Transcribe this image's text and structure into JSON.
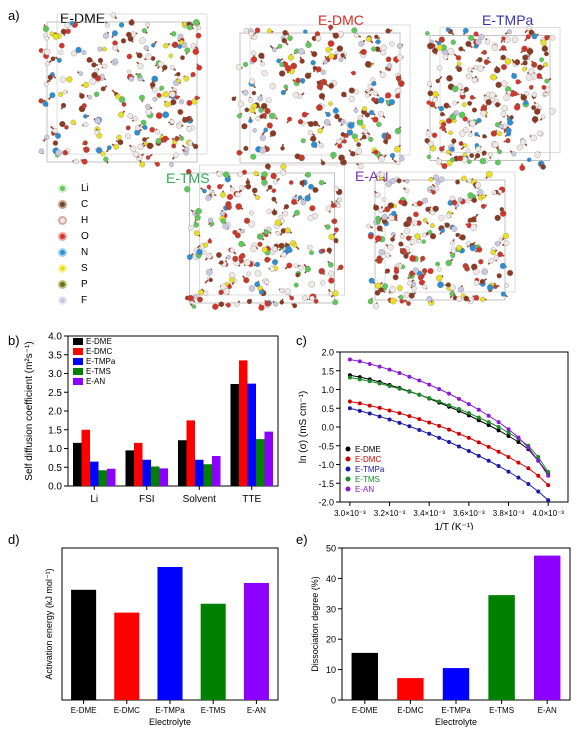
{
  "panel_labels": {
    "a": "a)",
    "b": "b)",
    "c": "c)",
    "d": "d)",
    "e": "e)"
  },
  "structures": [
    {
      "title": "E-DME",
      "color": "#000000"
    },
    {
      "title": "E-DMC",
      "color": "#d42a1e"
    },
    {
      "title": "E-TMPa",
      "color": "#3a33b5"
    },
    {
      "title": "E-TMS",
      "color": "#2eae52"
    },
    {
      "title": "E-AN",
      "color": "#7d2fc0"
    }
  ],
  "atom_legend": [
    {
      "symbol": "Li",
      "color": "#5fc85a"
    },
    {
      "symbol": "C",
      "color": "#6b4a2f"
    },
    {
      "symbol": "H",
      "color": "#e8c8c0"
    },
    {
      "symbol": "O",
      "color": "#d4342a"
    },
    {
      "symbol": "N",
      "color": "#2a8fd4"
    },
    {
      "symbol": "S",
      "color": "#e8e020"
    },
    {
      "symbol": "P",
      "color": "#6b7020"
    },
    {
      "symbol": "F",
      "color": "#c8c8e0"
    }
  ],
  "chart_data": [
    {
      "id": "b",
      "type": "bar",
      "categories": [
        "Li",
        "FSI",
        "Solvent",
        "TTE"
      ],
      "ylabel": "Self diffusion coefficient (m²s⁻¹)",
      "ylim": [
        0,
        4.0
      ],
      "yticks": [
        "0.0",
        "0.5",
        "1.0",
        "1.5",
        "2.0",
        "2.5",
        "3.0",
        "3.5",
        "4.0"
      ],
      "legend_position": "top-left",
      "series": [
        {
          "name": "E-DME",
          "color": "#000000",
          "values": [
            1.15,
            0.95,
            1.22,
            2.72
          ]
        },
        {
          "name": "E-DMC",
          "color": "#ff0000",
          "values": [
            1.5,
            1.15,
            1.75,
            3.35
          ]
        },
        {
          "name": "E-TMPa",
          "color": "#0000ff",
          "values": [
            0.65,
            0.7,
            0.7,
            2.73
          ]
        },
        {
          "name": "E-TMS",
          "color": "#008000",
          "values": [
            0.42,
            0.52,
            0.58,
            1.25
          ]
        },
        {
          "name": "E-AN",
          "color": "#8b00ff",
          "values": [
            0.46,
            0.47,
            0.8,
            1.45
          ]
        }
      ]
    },
    {
      "id": "c",
      "type": "line",
      "xlabel": "1/T (K⁻¹)",
      "ylabel": "ln (σ) (mS cm⁻¹)",
      "xlim": [
        0.00295,
        0.0041
      ],
      "ylim": [
        -2.0,
        2.0
      ],
      "xticks": [
        "3.0×10⁻³",
        "3.2×10⁻³",
        "3.4×10⁻³",
        "3.6×10⁻³",
        "3.8×10⁻³",
        "4.0×10⁻³"
      ],
      "xtick_values": [
        0.003,
        0.0032,
        0.0034,
        0.0036,
        0.0038,
        0.004
      ],
      "yticks": [
        "-2.0",
        "-1.5",
        "-1.0",
        "-0.5",
        "0.0",
        "0.5",
        "1.0",
        "1.5",
        "2.0"
      ],
      "legend_position": "bottom-left",
      "x": [
        0.003,
        0.00305,
        0.0031,
        0.00315,
        0.0032,
        0.00325,
        0.0033,
        0.00335,
        0.0034,
        0.00345,
        0.0035,
        0.00355,
        0.0036,
        0.00365,
        0.0037,
        0.00375,
        0.0038,
        0.00385,
        0.0039,
        0.00395,
        0.004
      ],
      "series": [
        {
          "name": "E-DME",
          "color": "#000000",
          "values": [
            1.38,
            1.33,
            1.27,
            1.2,
            1.12,
            1.04,
            0.95,
            0.86,
            0.76,
            0.65,
            0.54,
            0.43,
            0.31,
            0.18,
            0.05,
            -0.09,
            -0.24,
            -0.4,
            -0.59,
            -0.9,
            -1.25
          ]
        },
        {
          "name": "E-DMC",
          "color": "#d40000",
          "values": [
            0.68,
            0.63,
            0.57,
            0.51,
            0.44,
            0.37,
            0.29,
            0.21,
            0.12,
            0.03,
            -0.07,
            -0.18,
            -0.29,
            -0.41,
            -0.53,
            -0.66,
            -0.8,
            -0.95,
            -1.1,
            -1.3,
            -1.55
          ]
        },
        {
          "name": "E-TMPa",
          "color": "#1a1aaa",
          "values": [
            0.5,
            0.43,
            0.36,
            0.28,
            0.2,
            0.11,
            0.02,
            -0.08,
            -0.18,
            -0.29,
            -0.4,
            -0.52,
            -0.64,
            -0.77,
            -0.9,
            -1.04,
            -1.19,
            -1.35,
            -1.52,
            -1.72,
            -1.95
          ]
        },
        {
          "name": "E-TMS",
          "color": "#1a8a2a",
          "values": [
            1.32,
            1.27,
            1.22,
            1.16,
            1.09,
            1.02,
            0.94,
            0.86,
            0.77,
            0.68,
            0.58,
            0.48,
            0.37,
            0.25,
            0.13,
            0.0,
            -0.15,
            -0.31,
            -0.5,
            -0.8,
            -1.2
          ]
        },
        {
          "name": "E-AN",
          "color": "#8a1ad4",
          "values": [
            1.8,
            1.75,
            1.68,
            1.61,
            1.53,
            1.44,
            1.34,
            1.24,
            1.13,
            1.01,
            0.89,
            0.75,
            0.61,
            0.46,
            0.3,
            0.13,
            -0.06,
            -0.28,
            -0.55,
            -0.9,
            -1.3
          ]
        }
      ]
    },
    {
      "id": "d",
      "type": "bar",
      "categories": [
        "E-DME",
        "E-DMC",
        "E-TMPa",
        "E-TMS",
        "E-AN"
      ],
      "colors": [
        "#000000",
        "#ff0000",
        "#0000ff",
        "#008000",
        "#8b00ff"
      ],
      "values": [
        4.35,
        3.45,
        5.25,
        3.8,
        4.62
      ],
      "xlabel": "Electrolyte",
      "ylabel": "Activation energy (kJ mol⁻¹)",
      "ylim": [
        0,
        6
      ]
    },
    {
      "id": "e",
      "type": "bar",
      "categories": [
        "E-DME",
        "E-DMC",
        "E-TMPa",
        "E-TMS",
        "E-AN"
      ],
      "colors": [
        "#000000",
        "#ff0000",
        "#0000ff",
        "#008000",
        "#8b00ff"
      ],
      "values": [
        15.5,
        7.2,
        10.5,
        34.5,
        47.5
      ],
      "xlabel": "Electrolyte",
      "ylabel": "Dissociation degree (%)",
      "ylim": [
        0,
        50
      ],
      "yticks": [
        "0",
        "10",
        "20",
        "30",
        "40",
        "50"
      ]
    }
  ]
}
